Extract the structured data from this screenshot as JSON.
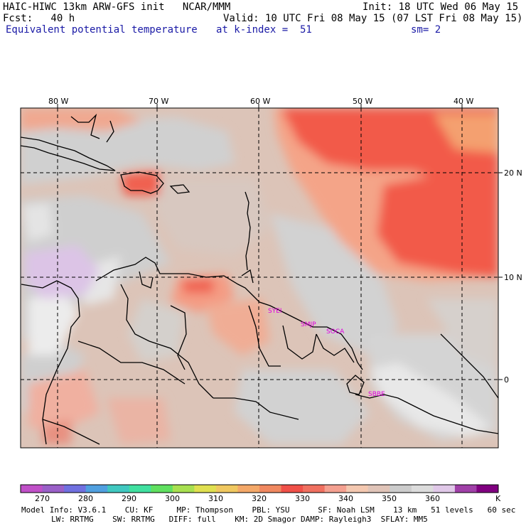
{
  "header": {
    "model": "HAIC-HIWC 13km ARW-GFS init   NCAR/MMM",
    "init": "Init: 18 UTC Wed 06 May 15",
    "fcst": "Fcst:   40 h",
    "valid": "Valid: 10 UTC Fri 08 May 15 (07 LST Fri 08 May 15)",
    "field": "Equivalent potential temperature",
    "level": "at k-index =  51",
    "smooth": "sm= 2"
  },
  "map": {
    "lon_labels": [
      "80 W",
      "70 W",
      "60 W",
      "50 W",
      "40 W"
    ],
    "lat_labels": [
      "20 N",
      "10 N",
      "0"
    ],
    "stations": [
      "SYEI",
      "SMJP",
      "SOCA",
      "SBBE"
    ],
    "station_color": "#e000e0"
  },
  "colorbar": {
    "colors": [
      "#c050c8",
      "#9a60c8",
      "#7070e0",
      "#50a0e0",
      "#40c8c0",
      "#40e0a0",
      "#60e060",
      "#a8e050",
      "#e0e050",
      "#f0c860",
      "#f4a868",
      "#f08860",
      "#f05048",
      "#f07060",
      "#f4a090",
      "#f4c8b0",
      "#e0c4b8",
      "#cccccc",
      "#dcdcdc",
      "#e0c8e8",
      "#a040a8",
      "#800080"
    ],
    "labels": [
      "270",
      "280",
      "290",
      "300",
      "310",
      "320",
      "330",
      "340",
      "350",
      "360"
    ],
    "unit": "K"
  },
  "footer": {
    "line1": "Model Info: V3.6.1    CU: KF     MP: Thompson    PBL: YSU      SF: Noah LSM    13 km   51 levels   60 sec",
    "line2": "LW: RRTMG    SW: RRTMG   DIFF: full    KM: 2D Smagor DAMP: Rayleigh3  SFLAY: MM5"
  }
}
